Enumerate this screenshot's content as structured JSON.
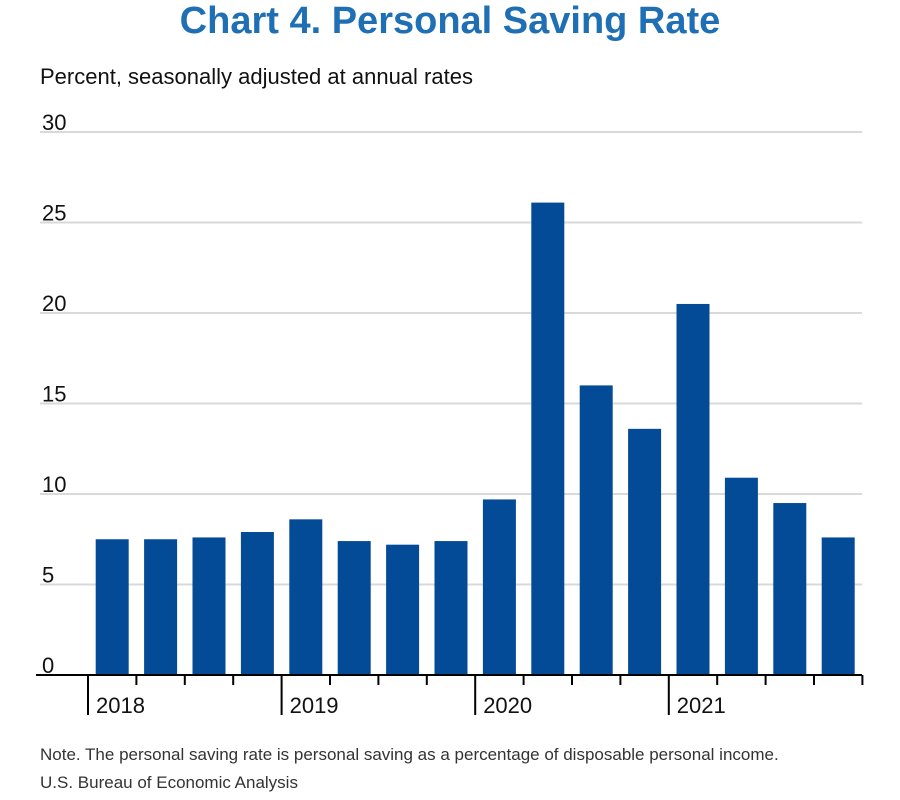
{
  "title": "Chart 4. Personal Saving Rate",
  "subtitle": "Percent, seasonally adjusted at annual rates",
  "note": "Note. The personal saving rate is personal saving as a percentage of disposable personal income.",
  "source": "U.S. Bureau of Economic Analysis",
  "colors": {
    "bar": "#034b96",
    "title": "#1f6fb5",
    "grid": "#d9d9d9"
  },
  "chart_data": {
    "type": "bar",
    "title": "Chart 4. Personal Saving Rate",
    "ylabel": "Percent, seasonally adjusted at annual rates",
    "xlabel": "",
    "categories": [
      "2018 Q1",
      "2018 Q2",
      "2018 Q3",
      "2018 Q4",
      "2019 Q1",
      "2019 Q2",
      "2019 Q3",
      "2019 Q4",
      "2020 Q1",
      "2020 Q2",
      "2020 Q3",
      "2020 Q4",
      "2021 Q1",
      "2021 Q2",
      "2021 Q3",
      "2021 Q4"
    ],
    "values": [
      7.5,
      7.5,
      7.6,
      7.9,
      8.6,
      7.4,
      7.2,
      7.4,
      9.7,
      26.1,
      16.0,
      13.6,
      20.5,
      10.9,
      9.5,
      7.6
    ],
    "year_labels": [
      "2018",
      "2019",
      "2020",
      "2021"
    ],
    "yticks": [
      0,
      5,
      10,
      15,
      20,
      25,
      30
    ],
    "ylim": [
      0,
      30
    ],
    "grid": true
  }
}
